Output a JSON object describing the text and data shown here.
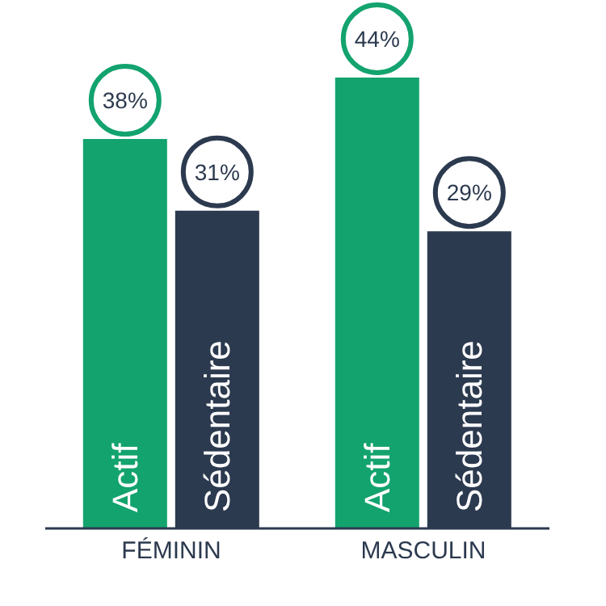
{
  "chart_data": {
    "type": "bar",
    "categories": [
      "FÉMININ",
      "MASCULIN"
    ],
    "series": [
      {
        "name": "Actif",
        "color": "#13a36e",
        "values": [
          38,
          44
        ],
        "value_labels": [
          "38%",
          "44%"
        ]
      },
      {
        "name": "Sédentaire",
        "color": "#2c3a4f",
        "values": [
          31,
          29
        ],
        "value_labels": [
          "31%",
          "29%"
        ]
      }
    ],
    "legend": false,
    "grid": false
  }
}
